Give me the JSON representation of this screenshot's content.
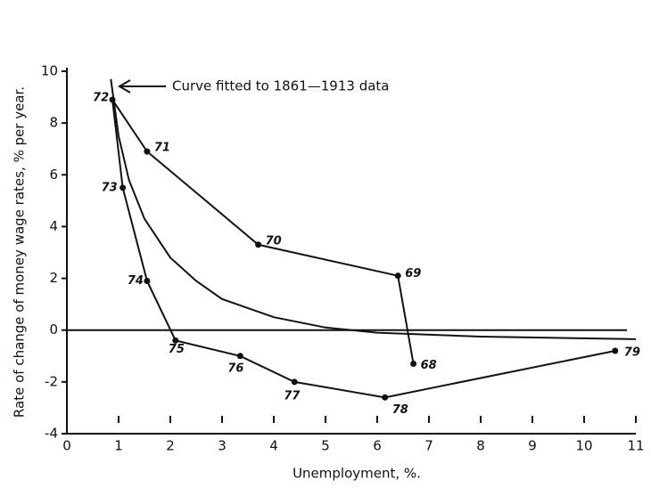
{
  "chart_data": {
    "type": "line",
    "x": [
      6.7,
      6.4,
      3.7,
      1.55,
      0.88,
      1.08,
      1.55,
      2.1,
      3.35,
      4.4,
      6.15,
      10.6
    ],
    "values": [
      -1.3,
      2.1,
      3.3,
      6.9,
      8.9,
      5.5,
      1.9,
      -0.4,
      -1.0,
      -2.0,
      -2.6,
      -0.8
    ],
    "labels": [
      "68",
      "69",
      "70",
      "71",
      "72",
      "73",
      "74",
      "75",
      "76",
      "77",
      "78",
      "79"
    ],
    "color": "#111111",
    "fitted_curve": {
      "annotation": "Curve fitted to 1861—1913 data",
      "x": [
        0.85,
        1,
        1.2,
        1.5,
        2,
        2.5,
        3,
        4,
        5,
        6,
        8,
        11
      ],
      "values": [
        9.7,
        7.5,
        5.8,
        4.3,
        2.8,
        1.9,
        1.2,
        0.5,
        0.1,
        -0.1,
        -0.25,
        -0.35
      ]
    },
    "reference_line": 0,
    "xlabel": "Unemployment,  %.",
    "ylabel": "Rate of change of money wage rates, % per year.",
    "xlim": [
      0,
      11
    ],
    "ylim": [
      -4,
      10
    ],
    "xticks": [
      0,
      1,
      2,
      3,
      4,
      5,
      6,
      7,
      8,
      9,
      10,
      11
    ],
    "yticks": [
      -4,
      -2,
      0,
      2,
      4,
      6,
      8,
      10
    ]
  }
}
